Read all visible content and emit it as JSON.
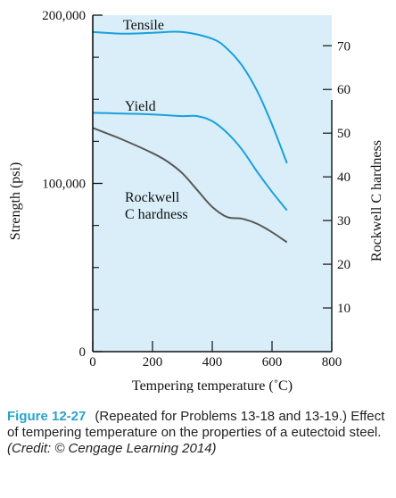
{
  "chart_data": {
    "type": "line",
    "xlabel": "Tempering temperature (˚C)",
    "ylabel_left": "Strength (psi)",
    "ylabel_right": "Rockwell C hardness",
    "xlim": [
      0,
      800
    ],
    "ylim_left": [
      0,
      200000
    ],
    "ylim_right": [
      0,
      77
    ],
    "x_ticks": [
      {
        "value": 0,
        "label": "0"
      },
      {
        "value": 200,
        "label": "200"
      },
      {
        "value": 400,
        "label": "400"
      },
      {
        "value": 600,
        "label": "600"
      },
      {
        "value": 800,
        "label": "800"
      }
    ],
    "y_ticks_left": [
      {
        "value": 0,
        "label": "0"
      },
      {
        "value": 100000,
        "label": "100,000"
      },
      {
        "value": 200000,
        "label": "200,000"
      }
    ],
    "y_ticks_right": [
      {
        "value": 10,
        "label": "10"
      },
      {
        "value": 20,
        "label": "20"
      },
      {
        "value": 30,
        "label": "30"
      },
      {
        "value": 40,
        "label": "40"
      },
      {
        "value": 50,
        "label": "50"
      },
      {
        "value": 60,
        "label": "60"
      },
      {
        "value": 70,
        "label": "70"
      }
    ],
    "grid": false,
    "series": [
      {
        "name": "Tensile",
        "axis": "left",
        "color": "#1aa0dc",
        "points": [
          [
            0,
            190000
          ],
          [
            100,
            189000
          ],
          [
            200,
            189500
          ],
          [
            300,
            190000
          ],
          [
            400,
            186000
          ],
          [
            450,
            180000
          ],
          [
            500,
            170000
          ],
          [
            550,
            155000
          ],
          [
            600,
            135000
          ],
          [
            650,
            112000
          ]
        ]
      },
      {
        "name": "Yield",
        "axis": "left",
        "color": "#1aa0dc",
        "points": [
          [
            0,
            142000
          ],
          [
            100,
            141500
          ],
          [
            200,
            141000
          ],
          [
            300,
            140000
          ],
          [
            350,
            140000
          ],
          [
            400,
            137000
          ],
          [
            450,
            130000
          ],
          [
            500,
            120000
          ],
          [
            550,
            107000
          ],
          [
            600,
            95000
          ],
          [
            650,
            84000
          ]
        ]
      },
      {
        "name": "Rockwell\nC hardness",
        "axis": "left",
        "color": "#595959",
        "points": [
          [
            0,
            133000
          ],
          [
            100,
            126000
          ],
          [
            200,
            118000
          ],
          [
            250,
            113000
          ],
          [
            300,
            106000
          ],
          [
            350,
            96000
          ],
          [
            400,
            86000
          ],
          [
            450,
            80000
          ],
          [
            500,
            79000
          ],
          [
            550,
            76000
          ],
          [
            600,
            71000
          ],
          [
            650,
            65000
          ]
        ]
      }
    ]
  },
  "caption": {
    "label": "Figure 12-27",
    "text": "(Repeated for Problems 13-18 and 13-19.) Effect of tempering temperature on the properties of a eutectoid steel.",
    "credit": "(Credit: © Cengage Learning 2014)"
  },
  "colors": {
    "plot_background": "#d9eef8",
    "accent": "#2aa3c9"
  }
}
